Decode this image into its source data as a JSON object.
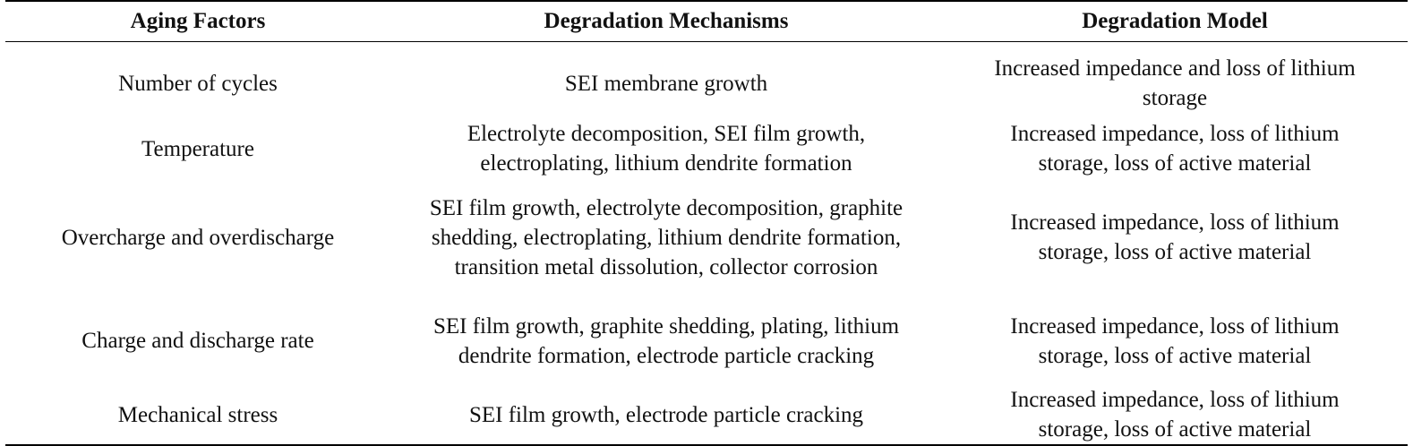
{
  "table": {
    "headers": [
      "Aging Factors",
      "Degradation Mechanisms",
      "Degradation Model"
    ],
    "rows": [
      {
        "factor": "Number of cycles",
        "mechanisms": "SEI membrane growth",
        "model": "Increased impedance and loss of lithium storage"
      },
      {
        "factor": "Temperature",
        "mechanisms": "Electrolyte decomposition, SEI film growth, electroplating, lithium dendrite formation",
        "model": "Increased impedance, loss of lithium storage, loss of active material"
      },
      {
        "factor": "Overcharge and overdischarge",
        "mechanisms": "SEI film growth, electrolyte decomposition, graphite shedding, electroplating, lithium dendrite formation, transition metal dissolution, collector corrosion",
        "model": "Increased impedance, loss of lithium storage, loss of active material"
      },
      {
        "factor": "Charge and discharge rate",
        "mechanisms": "SEI film growth, graphite shedding, plating, lithium dendrite formation, electrode particle cracking",
        "model": "Increased impedance, loss of lithium storage, loss of active material"
      },
      {
        "factor": "Mechanical stress",
        "mechanisms": "SEI film growth, electrode particle cracking",
        "model": "Increased impedance, loss of lithium storage, loss of active material"
      }
    ]
  }
}
